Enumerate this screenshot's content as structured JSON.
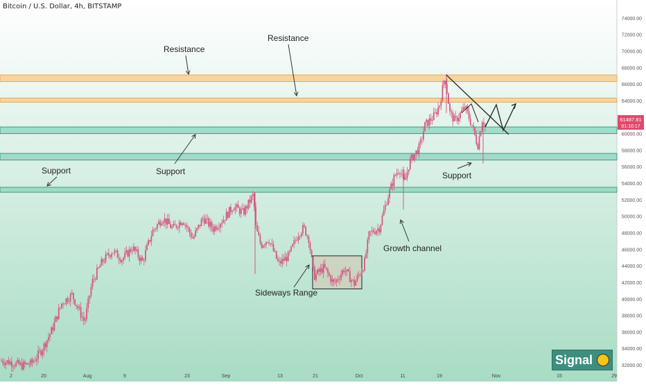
{
  "header": {
    "title": "Bitcoin / U.S. Dollar, 4h, BITSTAMP"
  },
  "badge": {
    "label": "Signal",
    "icon": "smiley-face-icon"
  },
  "price_label": {
    "price": "61487.81",
    "countdown": "01:10:17"
  },
  "colors": {
    "candle": "#d4577f",
    "resistance_zone": "#f7c98a",
    "support_zone": "#8fd3bf",
    "background_top": "#ffffff",
    "background_bottom": "#a8dcc4",
    "annotation": "#222222",
    "price_tag": "#e0496b"
  },
  "chart_data": {
    "type": "candlestick",
    "x_ticks": [
      "2",
      "20",
      "Aug",
      "9",
      "23",
      "Sep",
      "13",
      "21",
      "Oct",
      "11",
      "19",
      "Nov",
      "15",
      "29"
    ],
    "y_ticks": [
      "32000.00",
      "34000.00",
      "36000.00",
      "38000.00",
      "40000.00",
      "42000.00",
      "44000.00",
      "46000.00",
      "48000.00",
      "50000.00",
      "52000.00",
      "54000.00",
      "56000.00",
      "58000.00",
      "60000.00",
      "62000.00",
      "64000.00",
      "66000.00",
      "68000.00",
      "70000.00",
      "72000.00",
      "74000.00"
    ],
    "ylim": [
      31500,
      75500
    ],
    "price_path": [
      [
        0,
        32500
      ],
      [
        0.02,
        32300
      ],
      [
        0.04,
        31900
      ],
      [
        0.06,
        32200
      ],
      [
        0.08,
        33800
      ],
      [
        0.1,
        36200
      ],
      [
        0.12,
        39500
      ],
      [
        0.14,
        40500
      ],
      [
        0.155,
        38500
      ],
      [
        0.165,
        37200
      ],
      [
        0.18,
        42000
      ],
      [
        0.2,
        44500
      ],
      [
        0.22,
        45800
      ],
      [
        0.24,
        44800
      ],
      [
        0.26,
        46200
      ],
      [
        0.28,
        44500
      ],
      [
        0.3,
        48200
      ],
      [
        0.32,
        49800
      ],
      [
        0.34,
        48500
      ],
      [
        0.36,
        49600
      ],
      [
        0.38,
        47300
      ],
      [
        0.4,
        49800
      ],
      [
        0.42,
        48500
      ],
      [
        0.44,
        49600
      ],
      [
        0.46,
        51200
      ],
      [
        0.48,
        50400
      ],
      [
        0.5,
        52600
      ],
      [
        0.505,
        48500
      ],
      [
        0.515,
        46500
      ],
      [
        0.53,
        47300
      ],
      [
        0.55,
        44200
      ],
      [
        0.57,
        45200
      ],
      [
        0.59,
        48000
      ],
      [
        0.6,
        48600
      ],
      [
        0.61,
        47300
      ],
      [
        0.62,
        42700
      ],
      [
        0.64,
        43800
      ],
      [
        0.66,
        41800
      ],
      [
        0.68,
        43600
      ],
      [
        0.7,
        41800
      ],
      [
        0.72,
        44200
      ],
      [
        0.73,
        47900
      ],
      [
        0.75,
        48600
      ],
      [
        0.765,
        52000
      ],
      [
        0.78,
        54800
      ],
      [
        0.79,
        55800
      ],
      [
        0.8,
        54000
      ],
      [
        0.81,
        56600
      ],
      [
        0.83,
        58400
      ],
      [
        0.84,
        61000
      ],
      [
        0.86,
        62200
      ],
      [
        0.87,
        63600
      ],
      [
        0.88,
        67000
      ],
      [
        0.89,
        62500
      ],
      [
        0.9,
        61500
      ],
      [
        0.92,
        63200
      ],
      [
        0.935,
        60800
      ],
      [
        0.945,
        58500
      ],
      [
        0.955,
        62000
      ],
      [
        0.96,
        60800
      ]
    ],
    "series": [],
    "zones": [
      {
        "kind": "resistance",
        "from": 66300,
        "to": 67100
      },
      {
        "kind": "resistance",
        "from": 63800,
        "to": 64300
      },
      {
        "kind": "support",
        "from": 60000,
        "to": 60800
      },
      {
        "kind": "support",
        "from": 56800,
        "to": 57600
      },
      {
        "kind": "support",
        "from": 52900,
        "to": 53500
      }
    ],
    "sideways_box": {
      "x_from": "21",
      "x_to": "Oct",
      "from": 41200,
      "to": 45200
    },
    "annotations": [
      {
        "label": "Resistance"
      },
      {
        "label": "Resistance"
      },
      {
        "label": "Support"
      },
      {
        "label": "Support"
      },
      {
        "label": "Support"
      },
      {
        "label": "Sideways Range"
      },
      {
        "label": "Growth channel"
      }
    ],
    "title": "Bitcoin / U.S. Dollar, 4h, BITSTAMP",
    "xlabel": "",
    "ylabel": "",
    "grid": false,
    "legend": "none"
  }
}
